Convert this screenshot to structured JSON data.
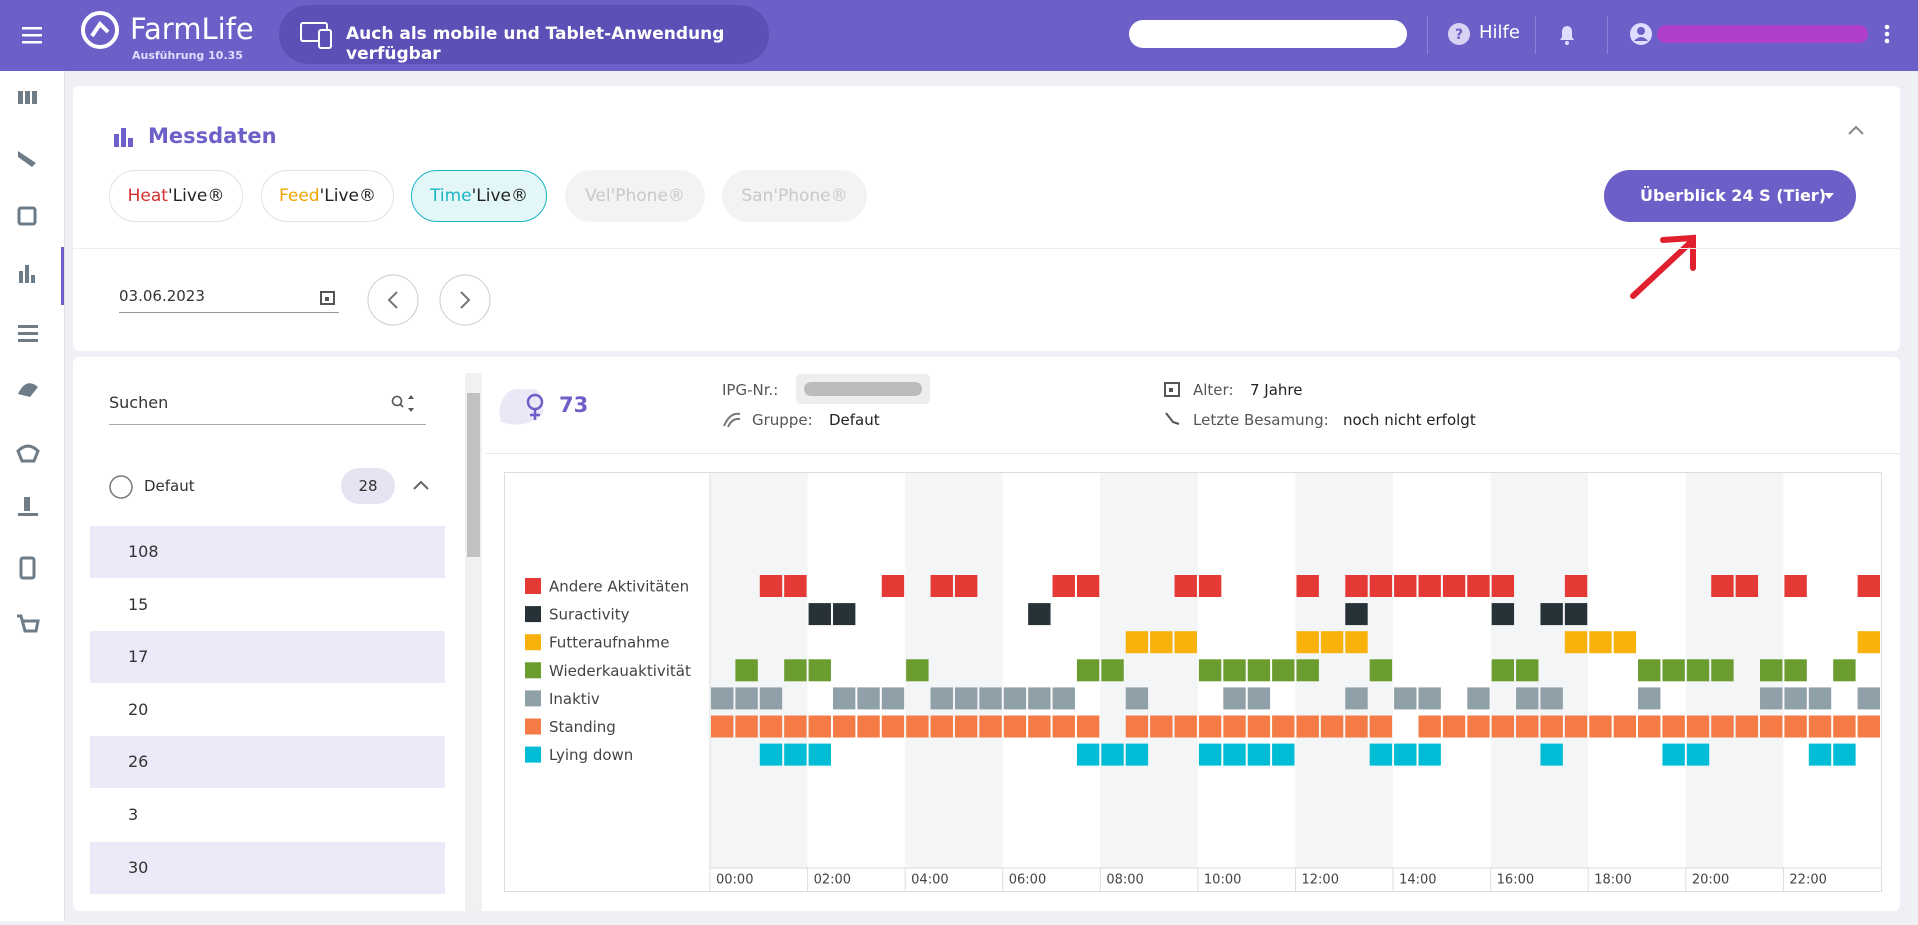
{
  "header": {
    "app_name": "FarmLife",
    "version": "Ausführung 10.35",
    "banner": "Auch als mobile und Tablet-Anwendung verfügbar",
    "help": "Hilfe"
  },
  "section": {
    "title": "Messdaten",
    "tabs": [
      {
        "brand": "Heat",
        "suffix": "'Live®"
      },
      {
        "brand": "Feed",
        "suffix": "'Live®"
      },
      {
        "brand": "Time",
        "suffix": "'Live®"
      },
      {
        "brand": "Vel",
        "suffix": "'Phone®"
      },
      {
        "brand": "San",
        "suffix": "'Phone®"
      }
    ],
    "view_button": "Überblick 24 S (Tier)",
    "date": "03.06.2023"
  },
  "sidebar_list": {
    "search": "Suchen",
    "group": "Defaut",
    "group_count": 28,
    "items": [
      "108",
      "15",
      "17",
      "20",
      "26",
      "3",
      "30"
    ]
  },
  "animal": {
    "number": 73,
    "ipg_label": "IPG-Nr.:",
    "group_label": "Gruppe:",
    "group": "Defaut",
    "age_label": "Alter:",
    "age": "7 Jahre",
    "insemination_label": "Letzte Besamung:",
    "insemination": "noch nicht erfolgt"
  },
  "chart_data": {
    "type": "timeline",
    "xlim": [
      0,
      24
    ],
    "xticks": [
      {
        "value": 0,
        "label": "00:00"
      },
      {
        "value": 2,
        "label": "02:00"
      },
      {
        "value": 4,
        "label": "04:00"
      },
      {
        "value": 6,
        "label": "06:00"
      },
      {
        "value": 8,
        "label": "08:00"
      },
      {
        "value": 10,
        "label": "10:00"
      },
      {
        "value": 12,
        "label": "12:00"
      },
      {
        "value": 14,
        "label": "14:00"
      },
      {
        "value": 16,
        "label": "16:00"
      },
      {
        "value": 18,
        "label": "18:00"
      },
      {
        "value": 20,
        "label": "20:00"
      },
      {
        "value": 22,
        "label": "22:00"
      }
    ],
    "series": [
      {
        "name": "Andere Aktivitäten",
        "color": "#e53935",
        "x": [
          1,
          1.5,
          3.5,
          4.5,
          5,
          7,
          7.5,
          9.5,
          10,
          12,
          13,
          13.5,
          14,
          14.5,
          15,
          15.5,
          16,
          17.5,
          20.5,
          21,
          22,
          23.5
        ]
      },
      {
        "name": "Suractivity",
        "color": "#263238",
        "x": [
          2,
          2.5,
          6.5,
          13,
          16,
          17,
          17.5
        ]
      },
      {
        "name": "Futteraufnahme",
        "color": "#f9b10b",
        "x": [
          8.5,
          9,
          9.5,
          12,
          12.5,
          13,
          17.5,
          18,
          18.5,
          23.5
        ]
      },
      {
        "name": "Wiederkauaktivität",
        "color": "#6a9c2f",
        "x": [
          0.5,
          1.5,
          2,
          4,
          7.5,
          8,
          10,
          10.5,
          11,
          11.5,
          12,
          13.5,
          16,
          16.5,
          19,
          19.5,
          20,
          20.5,
          21.5,
          22,
          23
        ]
      },
      {
        "name": "Inaktiv",
        "color": "#90a0a8",
        "x": [
          0,
          0.5,
          1,
          2.5,
          3,
          3.5,
          4.5,
          5,
          5.5,
          6,
          6.5,
          7,
          8.5,
          10.5,
          11,
          13,
          14,
          14.5,
          15.5,
          16.5,
          17,
          19,
          21.5,
          22,
          22.5,
          23.5
        ]
      },
      {
        "name": "Standing",
        "color": "#f47b45",
        "x": [
          0,
          0.5,
          1,
          1.5,
          2,
          2.5,
          3,
          3.5,
          4,
          4.5,
          5,
          5.5,
          6,
          6.5,
          7,
          7.5,
          8.5,
          9,
          9.5,
          10,
          10.5,
          11,
          11.5,
          12,
          12.5,
          13,
          13.5,
          14.5,
          15,
          15.5,
          16,
          16.5,
          17,
          17.5,
          18,
          18.5,
          19,
          19.5,
          20,
          20.5,
          21,
          21.5,
          22,
          22.5,
          23,
          23.5
        ]
      },
      {
        "name": "Lying down",
        "color": "#00bcd4",
        "x": [
          1,
          1.5,
          2,
          7.5,
          8,
          8.5,
          10,
          10.5,
          11,
          11.5,
          13.5,
          14,
          14.5,
          17,
          19.5,
          20,
          22.5,
          23
        ]
      }
    ]
  }
}
